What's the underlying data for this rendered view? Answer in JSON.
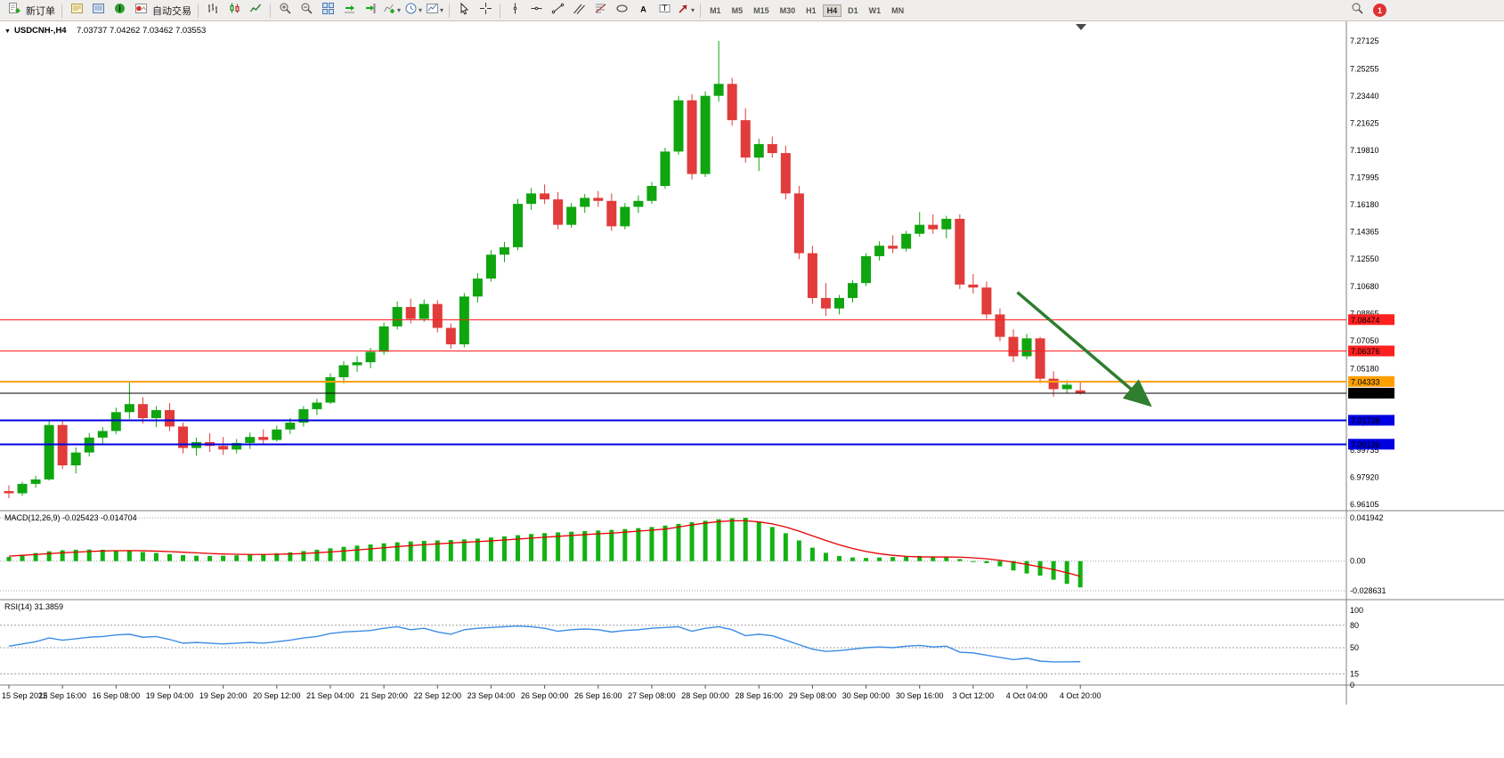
{
  "toolbar": {
    "new_order_label": "新订单",
    "auto_trading_label": "自动交易",
    "timeframes": [
      "M1",
      "M5",
      "M15",
      "M30",
      "H1",
      "H4",
      "D1",
      "W1",
      "MN"
    ],
    "active_timeframe": "H4",
    "notification_badge": "1"
  },
  "chart_data": {
    "type": "candlestick",
    "title": "USDCNH-,H4",
    "ohlc_text": "7.03737 7.04262 7.03462 7.03553",
    "current_ohlc": {
      "open": "7.03737",
      "high": "7.04262",
      "low": "7.03462",
      "close": "7.03553"
    },
    "price_axis_labels": [
      "7.27125",
      "7.25255",
      "7.23440",
      "7.21625",
      "7.19810",
      "7.17995",
      "7.16180",
      "7.14365",
      "7.12550",
      "7.10680",
      "7.08865",
      "7.07050",
      "7.05180",
      "7.03365",
      "7.01550",
      "6.99735",
      "6.97920",
      "6.96105"
    ],
    "time_axis_labels": [
      "15 Sep 2022",
      "15 Sep 16:00",
      "16 Sep 08:00",
      "19 Sep 04:00",
      "19 Sep 20:00",
      "20 Sep 12:00",
      "21 Sep 04:00",
      "21 Sep 20:00",
      "22 Sep 12:00",
      "23 Sep 04:00",
      "26 Sep 00:00",
      "26 Sep 16:00",
      "27 Sep 08:00",
      "28 Sep 00:00",
      "28 Sep 16:00",
      "29 Sep 08:00",
      "30 Sep 00:00",
      "30 Sep 16:00",
      "3 Oct 12:00",
      "4 Oct 04:00",
      "4 Oct 20:00"
    ],
    "candles": [
      [
        6.97,
        6.9738,
        6.9652,
        6.9685
      ],
      [
        6.9685,
        6.9762,
        6.9668,
        6.9748
      ],
      [
        6.9748,
        6.9802,
        6.9722,
        6.9778
      ],
      [
        6.9778,
        7.0168,
        6.977,
        7.0142
      ],
      [
        7.0142,
        7.0168,
        6.9848,
        6.9872
      ],
      [
        6.9872,
        6.9992,
        6.9818,
        6.9958
      ],
      [
        6.9958,
        7.0088,
        6.9932,
        7.0058
      ],
      [
        7.0058,
        7.0128,
        7.0008,
        7.0102
      ],
      [
        7.0102,
        7.0258,
        7.0082,
        7.0228
      ],
      [
        7.0228,
        7.0432,
        7.0182,
        7.0282
      ],
      [
        7.0282,
        7.0328,
        7.0152,
        7.0188
      ],
      [
        7.0188,
        7.0268,
        7.0128,
        7.0242
      ],
      [
        7.0242,
        7.0288,
        7.0102,
        7.0132
      ],
      [
        7.0132,
        7.0158,
        6.9952,
        6.9988
      ],
      [
        6.9988,
        7.0058,
        6.9938,
        7.0028
      ],
      [
        7.0028,
        7.0088,
        6.9962,
        7.0002
      ],
      [
        7.0002,
        7.0062,
        6.9942,
        6.9978
      ],
      [
        6.9978,
        7.0048,
        6.9952,
        7.0022
      ],
      [
        7.0022,
        7.0092,
        6.9982,
        7.0062
      ],
      [
        7.0062,
        7.0112,
        7.0018,
        7.0042
      ],
      [
        7.0042,
        7.0138,
        7.0032,
        7.0112
      ],
      [
        7.0112,
        7.0188,
        7.0082,
        7.0158
      ],
      [
        7.0158,
        7.0268,
        7.0132,
        7.0248
      ],
      [
        7.0248,
        7.0318,
        7.0208,
        7.0292
      ],
      [
        7.0292,
        7.0488,
        7.0282,
        7.0462
      ],
      [
        7.0462,
        7.0568,
        7.0422,
        7.0542
      ],
      [
        7.0542,
        7.0602,
        7.0498,
        7.0562
      ],
      [
        7.0562,
        7.0658,
        7.0522,
        7.0632
      ],
      [
        7.0632,
        7.0828,
        7.0612,
        7.0802
      ],
      [
        7.0802,
        7.0968,
        7.0782,
        7.0932
      ],
      [
        7.0932,
        7.0988,
        7.0822,
        7.0852
      ],
      [
        7.0852,
        7.0982,
        7.0832,
        7.0952
      ],
      [
        7.0952,
        7.0978,
        7.0762,
        7.0792
      ],
      [
        7.0792,
        7.0822,
        7.0652,
        7.0682
      ],
      [
        7.0682,
        7.1025,
        7.0662,
        7.1002
      ],
      [
        7.1002,
        7.1158,
        7.0962,
        7.1122
      ],
      [
        7.1122,
        7.1312,
        7.1102,
        7.1282
      ],
      [
        7.1282,
        7.1368,
        7.1232,
        7.1332
      ],
      [
        7.1332,
        7.1655,
        7.1312,
        7.1622
      ],
      [
        7.1622,
        7.1728,
        7.1582,
        7.1692
      ],
      [
        7.1692,
        7.1752,
        7.1622,
        7.1652
      ],
      [
        7.1652,
        7.1702,
        7.1452,
        7.1482
      ],
      [
        7.1482,
        7.1628,
        7.1462,
        7.1602
      ],
      [
        7.1602,
        7.1688,
        7.1562,
        7.1662
      ],
      [
        7.1662,
        7.1708,
        7.1602,
        7.1642
      ],
      [
        7.1642,
        7.1692,
        7.1442,
        7.1472
      ],
      [
        7.1472,
        7.1628,
        7.1452,
        7.1602
      ],
      [
        7.1602,
        7.1678,
        7.1562,
        7.1642
      ],
      [
        7.1642,
        7.1768,
        7.1622,
        7.1742
      ],
      [
        7.1742,
        7.1998,
        7.1722,
        7.1972
      ],
      [
        7.1972,
        7.2345,
        7.1952,
        7.2315
      ],
      [
        7.2315,
        7.2355,
        7.1785,
        7.1822
      ],
      [
        7.1822,
        7.2375,
        7.1802,
        7.2345
      ],
      [
        7.2345,
        7.2712,
        7.2305,
        7.2425
      ],
      [
        7.2425,
        7.2465,
        7.2145,
        7.2182
      ],
      [
        7.2182,
        7.2262,
        7.1898,
        7.1932
      ],
      [
        7.1932,
        7.2058,
        7.1842,
        7.2022
      ],
      [
        7.2022,
        7.2072,
        7.1932,
        7.1962
      ],
      [
        7.1962,
        7.2012,
        7.1652,
        7.1692
      ],
      [
        7.1692,
        7.1742,
        7.1252,
        7.1292
      ],
      [
        7.1292,
        7.1342,
        7.0952,
        7.0992
      ],
      [
        7.0992,
        7.1092,
        7.0872,
        7.0922
      ],
      [
        7.0922,
        7.1012,
        7.0882,
        7.0992
      ],
      [
        7.0992,
        7.1112,
        7.0962,
        7.1092
      ],
      [
        7.1092,
        7.1292,
        7.1072,
        7.1272
      ],
      [
        7.1272,
        7.1372,
        7.1242,
        7.1342
      ],
      [
        7.1342,
        7.1412,
        7.1292,
        7.1322
      ],
      [
        7.1322,
        7.1442,
        7.1302,
        7.1422
      ],
      [
        7.1422,
        7.1568,
        7.1402,
        7.1482
      ],
      [
        7.1482,
        7.1552,
        7.1422,
        7.1452
      ],
      [
        7.1452,
        7.1542,
        7.1392,
        7.1522
      ],
      [
        7.1522,
        7.1552,
        7.1052,
        7.1082
      ],
      [
        7.1082,
        7.1152,
        7.1022,
        7.1062
      ],
      [
        7.1062,
        7.1102,
        7.0852,
        7.0882
      ],
      [
        7.0882,
        7.0922,
        7.0702,
        7.0732
      ],
      [
        7.0732,
        7.0782,
        7.0562,
        7.0602
      ],
      [
        7.0602,
        7.0752,
        7.0582,
        7.0722
      ],
      [
        7.0722,
        7.0732,
        7.0422,
        7.0452
      ],
      [
        7.0452,
        7.0502,
        7.0332,
        7.0382
      ],
      [
        7.0382,
        7.0442,
        7.0352,
        7.0412
      ],
      [
        7.03737,
        7.04262,
        7.03462,
        7.03553
      ]
    ],
    "hlines": [
      {
        "price": 7.08474,
        "label": "7.08474",
        "color": "#ff2020",
        "text": "#ffffff",
        "width": 1
      },
      {
        "price": 7.06376,
        "label": "7.06376",
        "color": "#ff2020",
        "text": "#ffffff",
        "width": 1
      },
      {
        "price": 7.04333,
        "label": "7.04333",
        "color": "#ffa000",
        "text": "#000000",
        "width": 2
      },
      {
        "price": 7.03553,
        "label": "7.03553",
        "color": "#000000",
        "text": "#ffffff",
        "width": 1
      },
      {
        "price": 7.01738,
        "label": "7.01738",
        "color": "#0000e0",
        "text": "#ffffff",
        "width": 2
      },
      {
        "price": 7.00136,
        "label": "7.00136",
        "color": "#0000e0",
        "text": "#ffffff",
        "width": 2
      }
    ],
    "macd": {
      "label": "MACD(12,26,9) -0.025423 -0.014704",
      "axis_labels": [
        {
          "text": "0.041942",
          "v": 0.041942
        },
        {
          "text": "0.00",
          "v": 0
        },
        {
          "text": "-0.028631",
          "v": -0.028631
        }
      ],
      "histogram": [
        0.004,
        0.006,
        0.0078,
        0.0095,
        0.0105,
        0.011,
        0.0112,
        0.011,
        0.0105,
        0.0098,
        0.0088,
        0.0078,
        0.0068,
        0.0058,
        0.0052,
        0.005,
        0.0052,
        0.0056,
        0.0061,
        0.0067,
        0.0075,
        0.0085,
        0.0097,
        0.011,
        0.0124,
        0.0138,
        0.015,
        0.0161,
        0.0172,
        0.0182,
        0.019,
        0.0196,
        0.02,
        0.0204,
        0.021,
        0.0218,
        0.0228,
        0.0239,
        0.0251,
        0.0262,
        0.0271,
        0.0278,
        0.0284,
        0.029,
        0.0296,
        0.0302,
        0.031,
        0.0319,
        0.033,
        0.0344,
        0.036,
        0.0376,
        0.039,
        0.0405,
        0.0415,
        0.0419,
        0.038,
        0.033,
        0.027,
        0.02,
        0.013,
        0.008,
        0.005,
        0.0035,
        0.003,
        0.0035,
        0.004,
        0.0045,
        0.005,
        0.0045,
        0.0035,
        0.002,
        0.0,
        -0.002,
        -0.005,
        -0.009,
        -0.012,
        -0.014,
        -0.018,
        -0.022,
        -0.0254
      ],
      "signal": [
        0.0048,
        0.0056,
        0.0064,
        0.0072,
        0.008,
        0.0087,
        0.0093,
        0.0098,
        0.0101,
        0.0102,
        0.01,
        0.0097,
        0.0092,
        0.0086,
        0.008,
        0.0074,
        0.0069,
        0.0066,
        0.0064,
        0.0064,
        0.0066,
        0.0069,
        0.0074,
        0.0081,
        0.0089,
        0.0098,
        0.0108,
        0.0118,
        0.0129,
        0.014,
        0.015,
        0.0159,
        0.0167,
        0.0175,
        0.0182,
        0.0189,
        0.0196,
        0.0204,
        0.0213,
        0.0222,
        0.0231,
        0.024,
        0.0248,
        0.0256,
        0.0264,
        0.0271,
        0.028,
        0.029,
        0.03,
        0.031,
        0.033,
        0.035,
        0.0368,
        0.0382,
        0.039,
        0.039,
        0.038,
        0.036,
        0.033,
        0.029,
        0.0245,
        0.02,
        0.0158,
        0.0122,
        0.0093,
        0.0071,
        0.0056,
        0.0046,
        0.0041,
        0.004,
        0.004,
        0.0038,
        0.0032,
        0.0022,
        0.0008,
        -0.001,
        -0.0032,
        -0.0056,
        -0.0082,
        -0.0112,
        -0.0147
      ]
    },
    "rsi": {
      "label": "RSI(14) 31.3859",
      "axis_labels": [
        {
          "text": "100",
          "v": 100
        },
        {
          "text": "80",
          "v": 80
        },
        {
          "text": "50",
          "v": 50
        },
        {
          "text": "15",
          "v": 15
        },
        {
          "text": "0",
          "v": 0
        }
      ],
      "levels": [
        80,
        50,
        15
      ],
      "values": [
        52,
        55,
        58,
        63,
        60,
        62,
        64,
        65,
        67,
        68,
        64,
        65,
        61,
        56,
        57,
        56,
        55,
        56,
        57,
        56,
        58,
        60,
        63,
        65,
        69,
        71,
        72,
        73,
        76,
        78,
        74,
        76,
        71,
        68,
        74,
        76,
        77,
        78,
        79,
        78,
        76,
        72,
        74,
        75,
        74,
        71,
        73,
        74,
        76,
        77,
        78,
        72,
        76,
        78,
        74,
        66,
        68,
        66,
        60,
        54,
        48,
        45,
        46,
        48,
        50,
        51,
        50,
        52,
        53,
        51,
        52,
        44,
        43,
        40,
        37,
        34,
        36,
        32,
        31,
        31,
        31.3859
      ]
    },
    "trend_arrow": {
      "from_index": 75.3,
      "from_price": 7.103,
      "to_index": 85.0,
      "to_price": 7.029,
      "color": "#2f7d2f",
      "width": 3.5
    },
    "colors": {
      "up": "#0fa50f",
      "down": "#e13b3b",
      "macd_hist": "#12b212",
      "macd_signal": "#e60000",
      "rsi_line": "#3c8ce6",
      "divider": "#808080",
      "grid_dots": "#a0a0a0"
    }
  }
}
